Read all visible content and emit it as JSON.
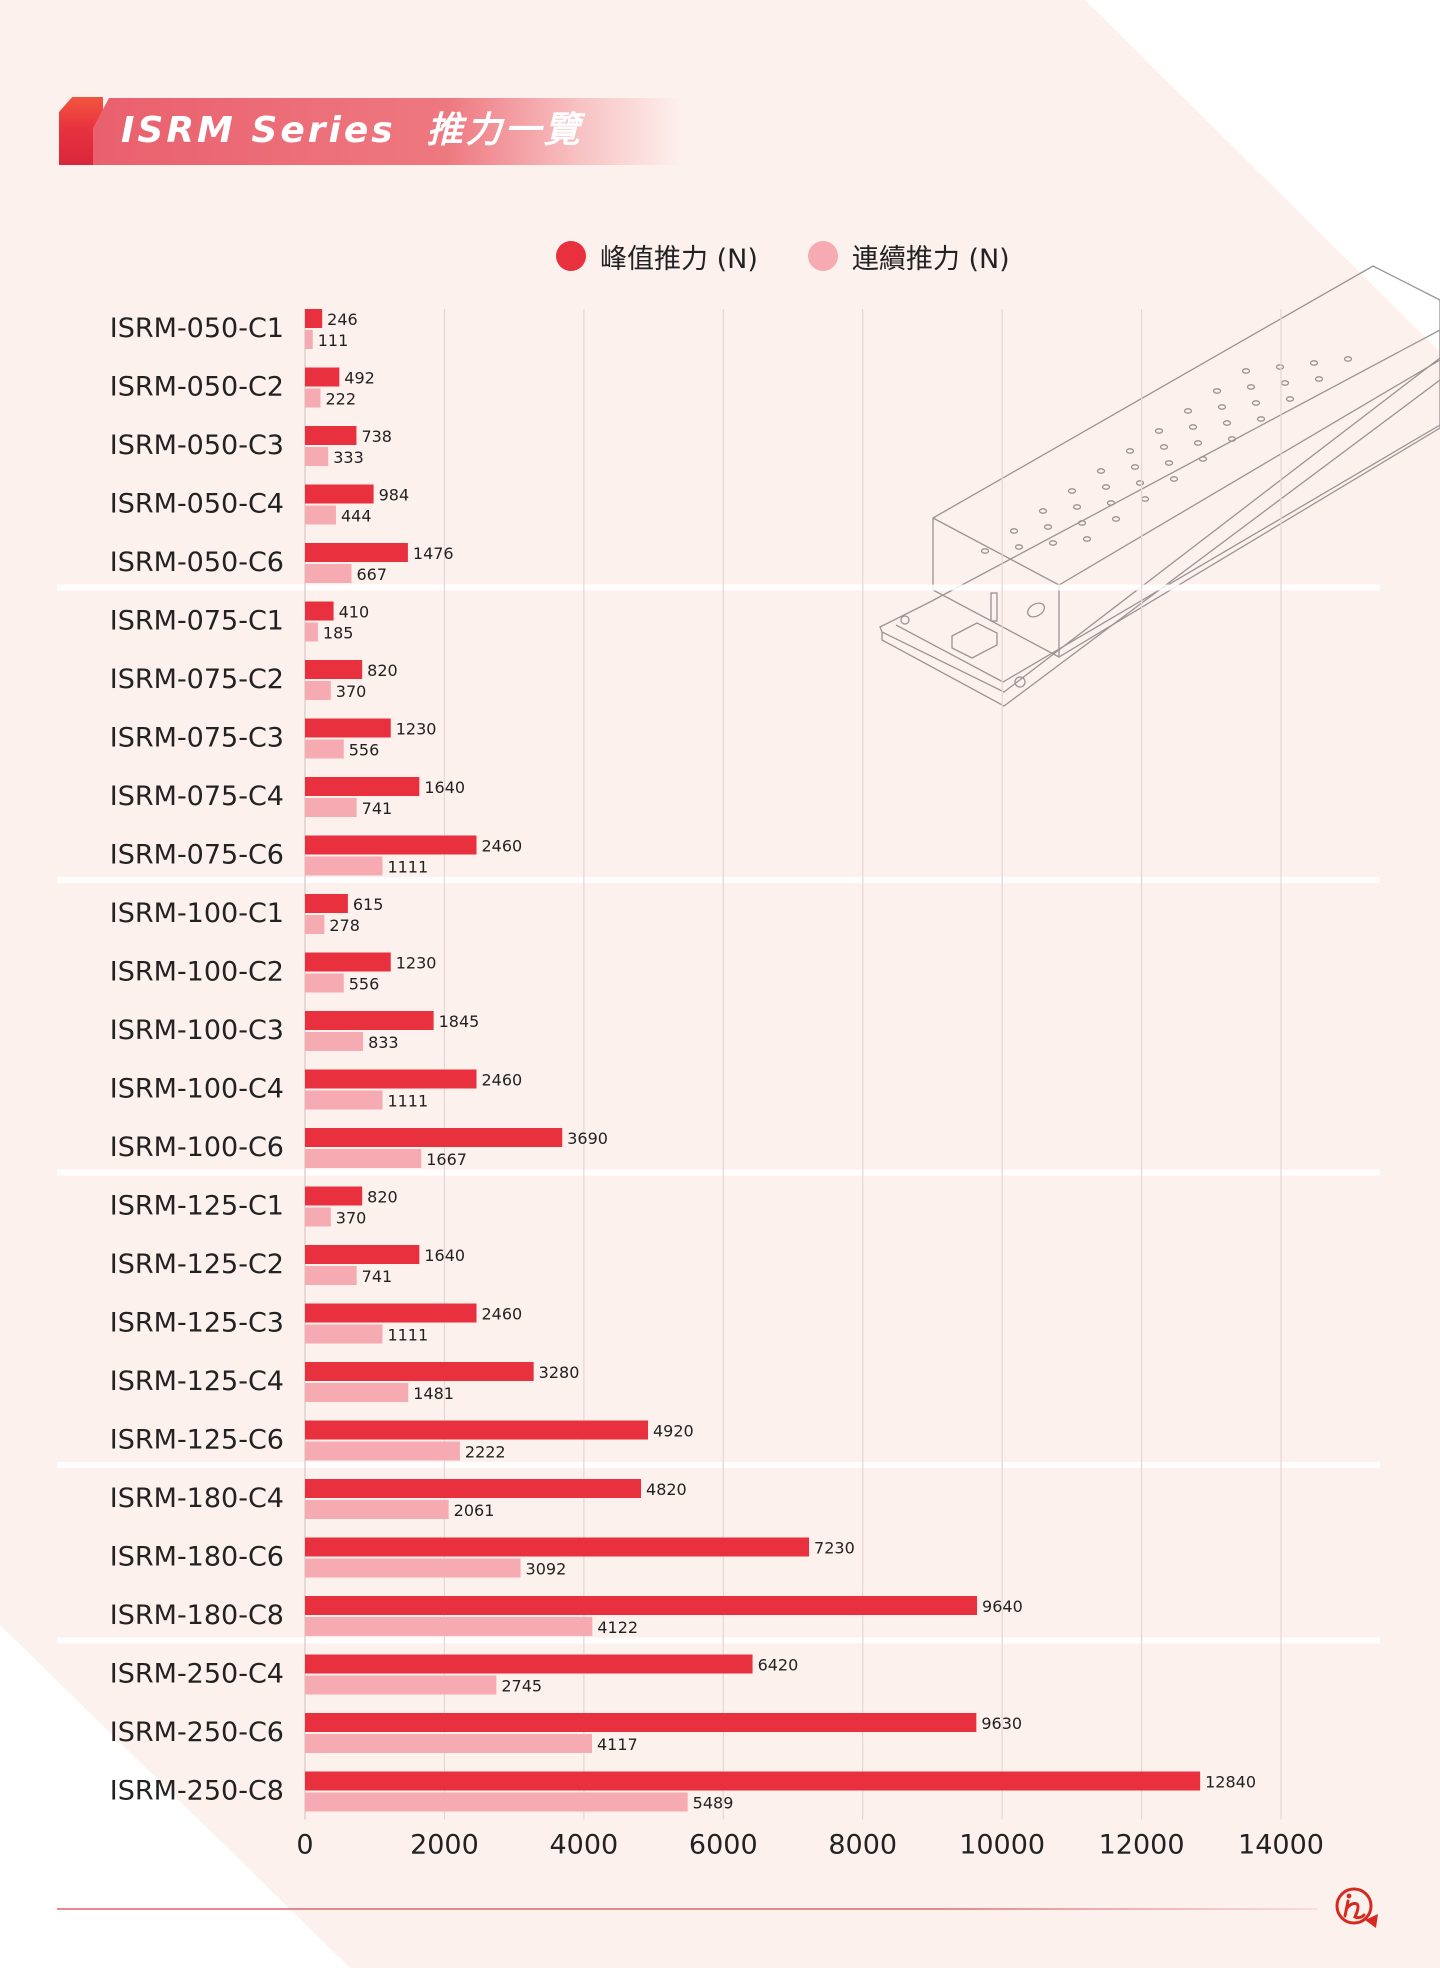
{
  "header": {
    "title": "ISRM Series  推力一覽"
  },
  "colors": {
    "peak": "#e8303f",
    "continuous": "#f6abb2",
    "banner": "#e9606d",
    "background": "#fdf1ee",
    "text": "#222222",
    "grid": "#e6d6d4",
    "logo": "#d42a20"
  },
  "legend": [
    {
      "label": "峰值推力 (N)",
      "series": "peak"
    },
    {
      "label": "連續推力 (N)",
      "series": "continuous"
    }
  ],
  "logo": {
    "name": "brand-logo-icon"
  },
  "chart_data": {
    "type": "bar",
    "orientation": "horizontal",
    "title": "ISRM Series 推力一覽",
    "xlabel": "",
    "ylabel": "",
    "xlim": [
      0,
      14000
    ],
    "xticks": [
      0,
      2000,
      4000,
      6000,
      8000,
      10000,
      12000,
      14000
    ],
    "grid": true,
    "legend_position": "top-center",
    "categories": [
      "ISRM-050-C1",
      "ISRM-050-C2",
      "ISRM-050-C3",
      "ISRM-050-C4",
      "ISRM-050-C6",
      "ISRM-075-C1",
      "ISRM-075-C2",
      "ISRM-075-C3",
      "ISRM-075-C4",
      "ISRM-075-C6",
      "ISRM-100-C1",
      "ISRM-100-C2",
      "ISRM-100-C3",
      "ISRM-100-C4",
      "ISRM-100-C6",
      "ISRM-125-C1",
      "ISRM-125-C2",
      "ISRM-125-C3",
      "ISRM-125-C4",
      "ISRM-125-C6",
      "ISRM-180-C4",
      "ISRM-180-C6",
      "ISRM-180-C8",
      "ISRM-250-C4",
      "ISRM-250-C6",
      "ISRM-250-C8"
    ],
    "groups": [
      "050",
      "075",
      "100",
      "125",
      "180",
      "250"
    ],
    "group_sizes": [
      5,
      5,
      5,
      5,
      3,
      3
    ],
    "series": [
      {
        "name": "峰值推力 (N)",
        "key": "peak",
        "values": [
          246,
          492,
          738,
          984,
          1476,
          410,
          820,
          1230,
          1640,
          2460,
          615,
          1230,
          1845,
          2460,
          3690,
          820,
          1640,
          2460,
          3280,
          4920,
          4820,
          7230,
          9640,
          6420,
          9630,
          12840
        ]
      },
      {
        "name": "連續推力 (N)",
        "key": "continuous",
        "values": [
          111,
          222,
          333,
          444,
          667,
          185,
          370,
          556,
          741,
          1111,
          278,
          556,
          833,
          1111,
          1667,
          370,
          741,
          1111,
          1481,
          2222,
          2061,
          3092,
          4122,
          2745,
          4117,
          5489
        ]
      }
    ]
  }
}
